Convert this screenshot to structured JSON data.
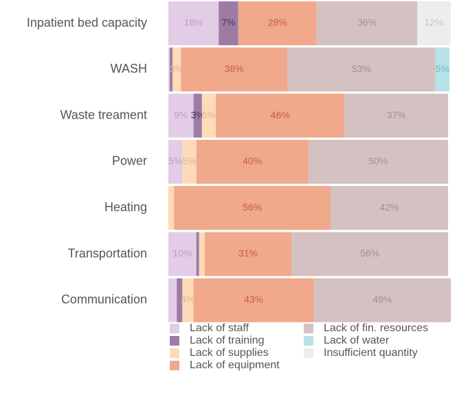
{
  "chart_data": {
    "type": "stacked_barh",
    "categories": [
      "Inpatient bed capacity",
      "WASH",
      "Waste treament",
      "Power",
      "Heating",
      "Transportation",
      "Communication"
    ],
    "series": [
      {
        "name": "Lack of staff",
        "color": "#e2cce6",
        "values": [
          18,
          0.5,
          9,
          5,
          0,
          10,
          3
        ],
        "value_labels": [
          "18%",
          null,
          "9%",
          "5%",
          null,
          "10%",
          null
        ]
      },
      {
        "name": "Lack of training",
        "color": "#9d7ca4",
        "values": [
          7,
          1,
          3,
          0,
          0,
          1,
          2
        ],
        "value_labels": [
          "7%",
          null,
          "3%",
          null,
          null,
          null,
          null
        ]
      },
      {
        "name": "Lack of supplies",
        "color": "#fddab8",
        "values": [
          0,
          3,
          5,
          5,
          2,
          2,
          4
        ],
        "value_labels": [
          null,
          "3%",
          "5%",
          "5%",
          null,
          null,
          "4%"
        ]
      },
      {
        "name": "Lack of equipment",
        "color": "#f0a98a",
        "values": [
          28,
          38,
          46,
          40,
          56,
          31,
          43
        ],
        "value_labels": [
          "28%",
          "38%",
          "46%",
          "40%",
          "56%",
          "31%",
          "43%"
        ]
      },
      {
        "name": "Lack of fin. resources",
        "color": "#d5c1c1",
        "values": [
          36,
          53,
          37,
          50,
          42,
          56,
          49
        ],
        "value_labels": [
          "36%",
          "53%",
          "37%",
          "50%",
          "42%",
          "56%",
          "49%"
        ]
      },
      {
        "name": "Lack of water",
        "color": "#b5e2e7",
        "values": [
          0,
          5,
          0,
          0,
          0,
          0,
          0
        ],
        "value_labels": [
          null,
          "5%",
          null,
          null,
          null,
          null,
          null
        ]
      },
      {
        "name": "Insufficient quantity",
        "color": "#ededed",
        "values": [
          12,
          0,
          0,
          0,
          0,
          0,
          0
        ],
        "value_labels": [
          "12%",
          null,
          null,
          null,
          null,
          null,
          null
        ]
      }
    ]
  }
}
